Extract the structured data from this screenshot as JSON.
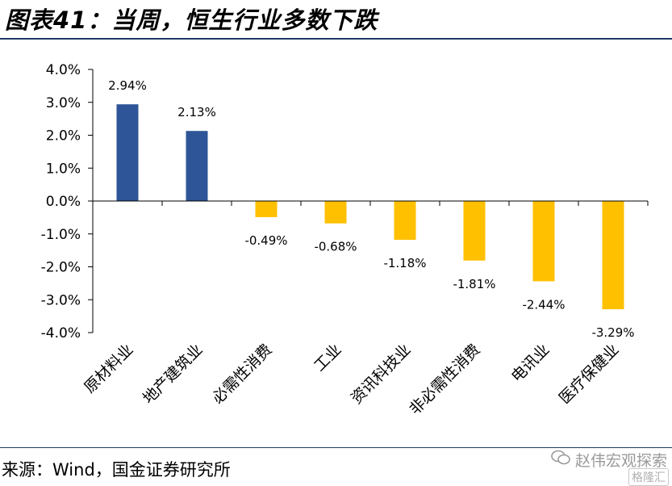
{
  "header": {
    "title": "图表41：当周，恒生行业多数下跌"
  },
  "footer": {
    "source": "来源：Wind，国金证券研究所",
    "watermark": "赵伟宏观探索",
    "badge": "格隆汇"
  },
  "chart_data": {
    "type": "bar",
    "title": "",
    "xlabel": "",
    "ylabel": "",
    "categories": [
      "原材料业",
      "地产建筑业",
      "必需性消费",
      "工业",
      "资讯科技业",
      "非必需性消费",
      "电讯业",
      "医疗保健业"
    ],
    "values": [
      2.94,
      2.13,
      -0.49,
      -0.68,
      -1.18,
      -1.81,
      -2.44,
      -3.29
    ],
    "value_labels": [
      "2.94%",
      "2.13%",
      "-0.49%",
      "-0.68%",
      "-1.18%",
      "-1.81%",
      "-2.44%",
      "-3.29%"
    ],
    "ylim": [
      -4.0,
      4.0
    ],
    "yticks": [
      4.0,
      3.0,
      2.0,
      1.0,
      0.0,
      -1.0,
      -2.0,
      -3.0,
      -4.0
    ],
    "ytick_labels": [
      "4.0%",
      "3.0%",
      "2.0%",
      "1.0%",
      "0.0%",
      "-1.0%",
      "-2.0%",
      "-3.0%",
      "-4.0%"
    ],
    "colors": {
      "positive": "#2e5597",
      "negative": "#ffc000",
      "axis": "#000000"
    },
    "grid": false,
    "legend": "none"
  }
}
